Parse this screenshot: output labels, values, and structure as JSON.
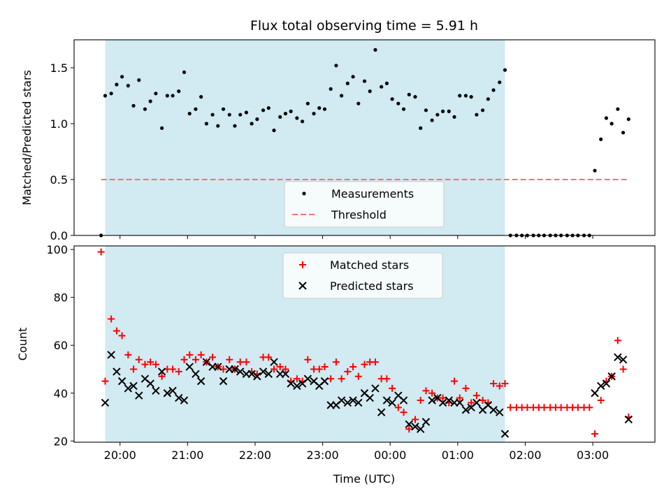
{
  "chart_data": {
    "type": "scatter",
    "title": "Flux total observing time = 5.91 h",
    "xlabel": "Time (UTC)",
    "x_ticks": [
      "20:00",
      "21:00",
      "22:00",
      "23:00",
      "00:00",
      "01:00",
      "02:00",
      "03:00"
    ],
    "x_range_hours": [
      19.32,
      27.92
    ],
    "shaded_interval_hours": [
      19.78,
      25.7
    ],
    "shade_color": "#add8e6",
    "panels": [
      {
        "ylabel": "Matched/Predicted stars",
        "ylim": [
          0,
          1.75
        ],
        "y_ticks": [
          0.0,
          0.5,
          1.0,
          1.5
        ],
        "legend": {
          "placement": "lower center",
          "entries": [
            "Measurements",
            "Threshold"
          ]
        },
        "series": [
          {
            "name": "Measurements",
            "marker": "dot",
            "color": "#000000",
            "x": [
              19.72,
              19.78,
              19.87,
              19.95,
              20.03,
              20.12,
              20.2,
              20.28,
              20.37,
              20.45,
              20.53,
              20.62,
              20.7,
              20.78,
              20.87,
              20.95,
              21.03,
              21.12,
              21.2,
              21.28,
              21.37,
              21.45,
              21.53,
              21.62,
              21.7,
              21.78,
              21.87,
              21.95,
              22.03,
              22.12,
              22.2,
              22.28,
              22.37,
              22.45,
              22.53,
              22.62,
              22.7,
              22.78,
              22.87,
              22.95,
              23.03,
              23.12,
              23.2,
              23.28,
              23.37,
              23.45,
              23.53,
              23.62,
              23.7,
              23.78,
              23.87,
              23.95,
              24.03,
              24.12,
              24.2,
              24.28,
              24.37,
              24.45,
              24.53,
              24.62,
              24.7,
              24.78,
              24.87,
              24.95,
              25.03,
              25.12,
              25.2,
              25.28,
              25.37,
              25.45,
              25.53,
              25.62,
              25.7,
              25.78,
              25.87,
              25.95,
              26.03,
              26.12,
              26.2,
              26.28,
              26.37,
              26.45,
              26.53,
              26.62,
              26.7,
              26.78,
              26.87,
              26.95,
              27.03,
              27.12,
              27.2,
              27.28,
              27.37,
              27.45,
              27.53
            ],
            "y": [
              0.0,
              1.25,
              1.27,
              1.35,
              1.42,
              1.34,
              1.16,
              1.39,
              1.13,
              1.2,
              1.27,
              0.96,
              1.25,
              1.25,
              1.29,
              1.46,
              1.09,
              1.13,
              1.24,
              1.0,
              1.08,
              0.98,
              1.13,
              1.08,
              0.98,
              1.08,
              1.1,
              1.0,
              1.04,
              1.12,
              1.14,
              0.94,
              1.06,
              1.09,
              1.11,
              1.05,
              1.02,
              1.18,
              1.09,
              1.14,
              1.13,
              1.31,
              1.52,
              1.25,
              1.36,
              1.42,
              1.18,
              1.38,
              1.29,
              1.66,
              1.33,
              1.36,
              1.22,
              1.18,
              1.13,
              1.26,
              1.24,
              0.96,
              1.12,
              1.03,
              1.08,
              1.11,
              1.11,
              1.06,
              1.25,
              1.25,
              1.24,
              1.08,
              1.12,
              1.22,
              1.3,
              1.37,
              1.48,
              0.0,
              0.0,
              0.0,
              0.0,
              0.0,
              0.0,
              0.0,
              0.0,
              0.0,
              0.0,
              0.0,
              0.0,
              0.0,
              0.0,
              0.0,
              0.58,
              0.86,
              1.05,
              1.0,
              1.13,
              0.92,
              1.04
            ]
          },
          {
            "name": "Threshold",
            "style": "dashed",
            "color": "#ff7070",
            "x": [
              19.72,
              27.53
            ],
            "y": [
              0.5,
              0.5
            ]
          }
        ]
      },
      {
        "ylabel": "Count",
        "ylim": [
          19.5,
          101.5
        ],
        "y_ticks": [
          20,
          40,
          60,
          80,
          100
        ],
        "legend": {
          "placement": "upper center",
          "entries": [
            "Matched stars",
            "Predicted stars"
          ]
        },
        "series": [
          {
            "name": "Matched stars",
            "marker": "plus",
            "color": "#ff0000",
            "x": [
              19.72,
              19.78,
              19.87,
              19.95,
              20.03,
              20.12,
              20.2,
              20.28,
              20.37,
              20.45,
              20.53,
              20.62,
              20.7,
              20.78,
              20.87,
              20.95,
              21.03,
              21.12,
              21.2,
              21.28,
              21.37,
              21.45,
              21.53,
              21.62,
              21.7,
              21.78,
              21.87,
              21.95,
              22.03,
              22.12,
              22.2,
              22.28,
              22.37,
              22.45,
              22.53,
              22.62,
              22.7,
              22.78,
              22.87,
              22.95,
              23.03,
              23.12,
              23.2,
              23.28,
              23.37,
              23.45,
              23.53,
              23.62,
              23.7,
              23.78,
              23.87,
              23.95,
              24.03,
              24.12,
              24.2,
              24.28,
              24.37,
              24.45,
              24.53,
              24.62,
              24.7,
              24.78,
              24.87,
              24.95,
              25.03,
              25.12,
              25.2,
              25.28,
              25.37,
              25.45,
              25.53,
              25.62,
              25.7,
              25.78,
              25.87,
              25.95,
              26.03,
              26.12,
              26.2,
              26.28,
              26.37,
              26.45,
              26.53,
              26.62,
              26.7,
              26.78,
              26.87,
              26.95,
              27.03,
              27.12,
              27.2,
              27.28,
              27.37,
              27.45,
              27.53
            ],
            "y": [
              99,
              45,
              71,
              66,
              64,
              56,
              50,
              54,
              52,
              53,
              52,
              47,
              50,
              50,
              49,
              54,
              56,
              54,
              56,
              53,
              55,
              51,
              50,
              54,
              50,
              53,
              53,
              49,
              48,
              55,
              55,
              50,
              51,
              50,
              45,
              46,
              45,
              54,
              50,
              50,
              51,
              46,
              53,
              46,
              49,
              51,
              47,
              52,
              53,
              53,
              46,
              46,
              42,
              34,
              32,
              25,
              29,
              37,
              41,
              40,
              38,
              38,
              36,
              45,
              38,
              42,
              36,
              39,
              37,
              36,
              44,
              43,
              44,
              34,
              34,
              34,
              34,
              34,
              34,
              34,
              34,
              34,
              34,
              34,
              34,
              34,
              34,
              34,
              23,
              37,
              45,
              47,
              62,
              50,
              30
            ]
          },
          {
            "name": "Predicted stars",
            "marker": "x",
            "color": "#000000",
            "x": [
              19.78,
              19.87,
              19.95,
              20.03,
              20.12,
              20.2,
              20.28,
              20.37,
              20.45,
              20.53,
              20.62,
              20.7,
              20.78,
              20.87,
              20.95,
              21.03,
              21.12,
              21.2,
              21.28,
              21.37,
              21.45,
              21.53,
              21.62,
              21.7,
              21.78,
              21.87,
              21.95,
              22.03,
              22.12,
              22.2,
              22.28,
              22.37,
              22.45,
              22.53,
              22.62,
              22.7,
              22.78,
              22.87,
              22.95,
              23.03,
              23.12,
              23.2,
              23.28,
              23.37,
              23.45,
              23.53,
              23.62,
              23.7,
              23.78,
              23.87,
              23.95,
              24.03,
              24.12,
              24.2,
              24.28,
              24.37,
              24.45,
              24.53,
              24.62,
              24.7,
              24.78,
              24.87,
              24.95,
              25.03,
              25.12,
              25.2,
              25.28,
              25.37,
              25.45,
              25.53,
              25.62,
              25.7,
              27.03,
              27.12,
              27.2,
              27.28,
              27.37,
              27.45,
              27.53
            ],
            "y": [
              36,
              56,
              49,
              45,
              42,
              43,
              39,
              46,
              44,
              41,
              49,
              40,
              41,
              38,
              37,
              51,
              48,
              45,
              53,
              51,
              51,
              45,
              50,
              50,
              49,
              48,
              48,
              47,
              49,
              48,
              53,
              48,
              48,
              44,
              43,
              44,
              46,
              45,
              43,
              45,
              35,
              35,
              37,
              36,
              37,
              36,
              40,
              38,
              42,
              32,
              37,
              36,
              39,
              37,
              27,
              26,
              25,
              28,
              37,
              38,
              36,
              37,
              36,
              36,
              33,
              34,
              36,
              33,
              35,
              33,
              32,
              23,
              40,
              43,
              44,
              47,
              55,
              54,
              29
            ]
          }
        ]
      }
    ]
  }
}
